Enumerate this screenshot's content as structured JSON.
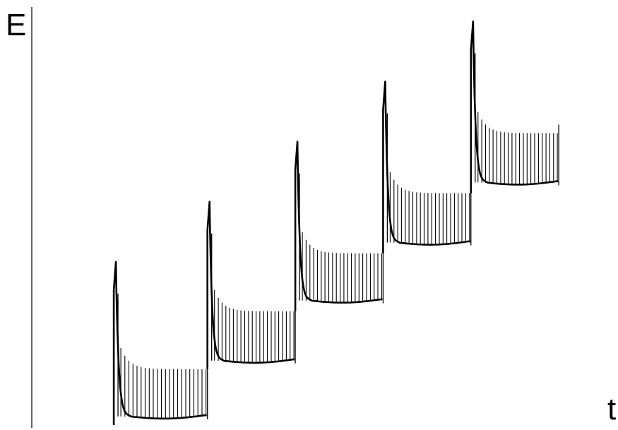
{
  "chart_data": {
    "type": "line",
    "title": "",
    "xlabel": "t",
    "ylabel": "E",
    "xlim": [
      0,
      10
    ],
    "ylim": [
      0,
      10
    ],
    "grid": false,
    "legend": "none",
    "colors": {
      "line": "#000000",
      "background": "#ffffff"
    },
    "series": [
      {
        "steps": [
          {
            "t_start": 1.4,
            "t_end": 3.0,
            "peak": 3.9,
            "stick_level": 1.4,
            "baseline": 0.3
          },
          {
            "t_start": 3.0,
            "t_end": 4.5,
            "peak": 5.3,
            "stick_level": 2.75,
            "baseline": 1.6
          },
          {
            "t_start": 4.5,
            "t_end": 6.0,
            "peak": 6.7,
            "stick_level": 4.1,
            "baseline": 3.0
          },
          {
            "t_start": 6.0,
            "t_end": 7.5,
            "peak": 8.1,
            "stick_level": 5.5,
            "baseline": 4.35
          },
          {
            "t_start": 7.5,
            "t_end": 9.0,
            "peak": 9.5,
            "stick_level": 6.9,
            "baseline": 5.75
          }
        ]
      }
    ]
  }
}
